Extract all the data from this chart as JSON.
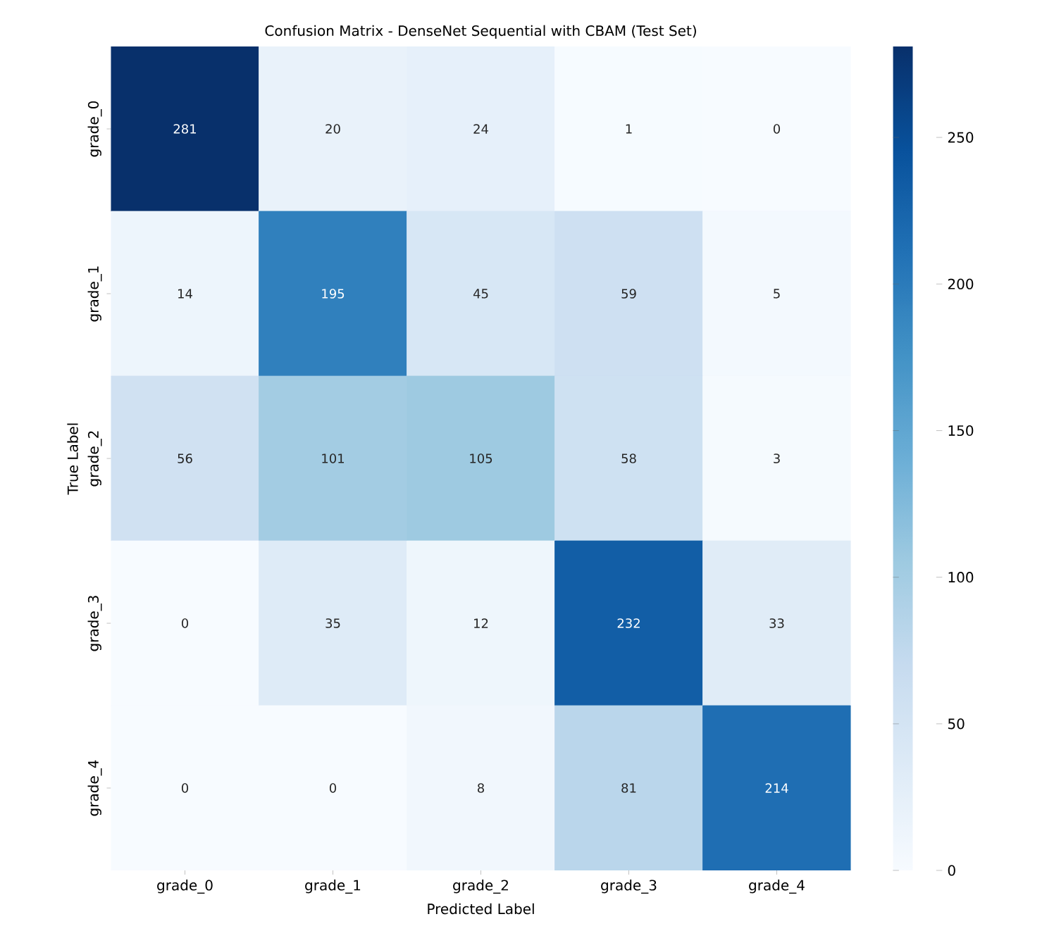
{
  "chart_data": {
    "type": "heatmap",
    "title": "Confusion Matrix - DenseNet Sequential with CBAM (Test Set)",
    "xlabel": "Predicted Label",
    "ylabel": "True Label",
    "categories": [
      "grade_0",
      "grade_1",
      "grade_2",
      "grade_3",
      "grade_4"
    ],
    "y_categories": [
      "grade_0",
      "grade_1",
      "grade_2",
      "grade_3",
      "grade_4"
    ],
    "cells": [
      [
        281,
        20,
        24,
        1,
        0
      ],
      [
        14,
        195,
        45,
        59,
        5
      ],
      [
        56,
        101,
        105,
        58,
        3
      ],
      [
        0,
        35,
        12,
        232,
        33
      ],
      [
        0,
        0,
        8,
        81,
        214
      ]
    ],
    "data_labels": true,
    "clim": [
      0,
      281
    ],
    "cticks": [
      0,
      50,
      100,
      150,
      200,
      250
    ]
  }
}
